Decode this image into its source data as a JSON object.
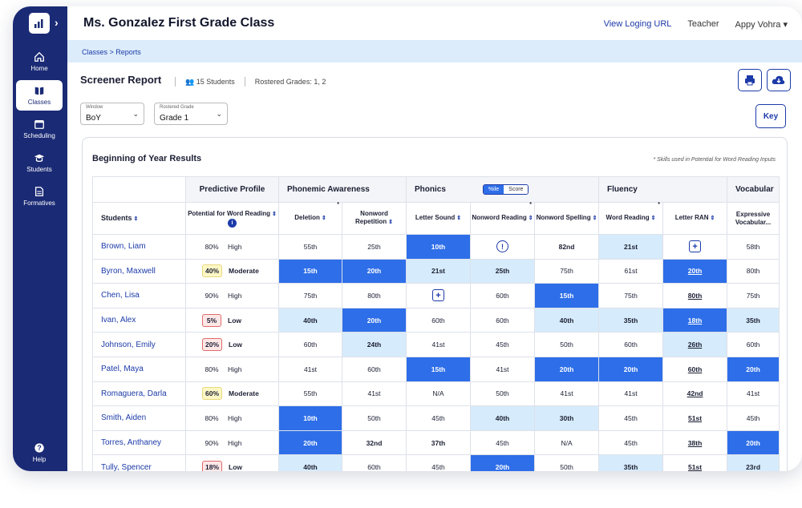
{
  "app": {
    "class_title": "Ms. Gonzalez First Grade Class",
    "links": {
      "view_login": "View Loging URL",
      "role": "Teacher",
      "user": "Appy Vohra"
    },
    "breadcrumb": "Classes > Reports"
  },
  "sidebar": {
    "items": [
      {
        "label": "Home",
        "icon": "home-icon"
      },
      {
        "label": "Classes",
        "icon": "book-icon"
      },
      {
        "label": "Scheduling",
        "icon": "calendar-icon"
      },
      {
        "label": "Students",
        "icon": "graduation-cap-icon"
      },
      {
        "label": "Formatives",
        "icon": "document-icon"
      }
    ],
    "help": "Help"
  },
  "report": {
    "title": "Screener Report",
    "students_count": "15 Students",
    "grades": "Rostered Grades: 1, 2",
    "window_label": "Window",
    "window_value": "BoY",
    "grade_label": "Rostered Grade",
    "grade_value": "Grade 1",
    "key_label": "Key"
  },
  "results": {
    "title": "Beginning of Year Results",
    "note": "* Skills used in Potential for Word Reading Inputs",
    "groups": [
      "Predictive Profile",
      "Phonemic Awareness",
      "Phonics",
      "Fluency",
      "Vocabular"
    ],
    "toggle": {
      "on": "%ile",
      "off": "Score"
    },
    "columns": {
      "students": "Students",
      "potential": "Potential for Word Reading",
      "deletion": "Deletion",
      "nonword_rep": "Nonword Repetition",
      "letter_sound": "Letter Sound",
      "nonword_reading": "Nonword Reading",
      "nonword_spelling": "Nonword Spelling",
      "word_reading": "Word Reading",
      "letter_ran": "Letter RAN",
      "expressive": "Expressive Vocabular..."
    },
    "rows": [
      {
        "name": "Brown, Liam",
        "pct": "80%",
        "level": "High",
        "c": [
          "55th",
          "25th",
          "10th",
          "",
          "82nd",
          "21st",
          "",
          "58th"
        ]
      },
      {
        "name": "Byron, Maxwell",
        "pct": "40%",
        "level": "Moderate",
        "c": [
          "15th",
          "20th",
          "21st",
          "25th",
          "75th",
          "61st",
          "20th",
          "80th"
        ]
      },
      {
        "name": "Chen, Lisa",
        "pct": "90%",
        "level": "High",
        "c": [
          "75th",
          "80th",
          "",
          "60th",
          "15th",
          "75th",
          "80th",
          "75th"
        ]
      },
      {
        "name": "Ivan, Alex",
        "pct": "5%",
        "level": "Low",
        "c": [
          "40th",
          "20th",
          "60th",
          "60th",
          "40th",
          "35th",
          "18th",
          "35th"
        ]
      },
      {
        "name": "Johnson, Emily",
        "pct": "20%",
        "level": "Low",
        "c": [
          "60th",
          "24th",
          "41st",
          "45th",
          "50th",
          "60th",
          "26th",
          "60th"
        ]
      },
      {
        "name": "Patel, Maya",
        "pct": "80%",
        "level": "High",
        "c": [
          "41st",
          "60th",
          "15th",
          "41st",
          "20th",
          "20th",
          "60th",
          "20th"
        ]
      },
      {
        "name": "Romaguera, Darla",
        "pct": "60%",
        "level": "Moderate",
        "c": [
          "55th",
          "41st",
          "N/A",
          "50th",
          "41st",
          "41st",
          "42nd",
          "41st"
        ]
      },
      {
        "name": "Smith, Aiden",
        "pct": "80%",
        "level": "High",
        "c": [
          "10th",
          "50th",
          "45th",
          "40th",
          "30th",
          "45th",
          "51st",
          "45th"
        ]
      },
      {
        "name": "Torres, Anthaney",
        "pct": "90%",
        "level": "High",
        "c": [
          "20th",
          "32nd",
          "37th",
          "45th",
          "N/A",
          "45th",
          "38th",
          "20th"
        ]
      },
      {
        "name": "Tully, Spencer",
        "pct": "18%",
        "level": "Low",
        "c": [
          "40th",
          "60th",
          "45th",
          "20th",
          "50th",
          "35th",
          "51st",
          "23rd"
        ]
      }
    ]
  },
  "colors": {
    "navy": "#1a2a75",
    "accent": "#2e6ee8",
    "light": "#d6ebfb"
  }
}
